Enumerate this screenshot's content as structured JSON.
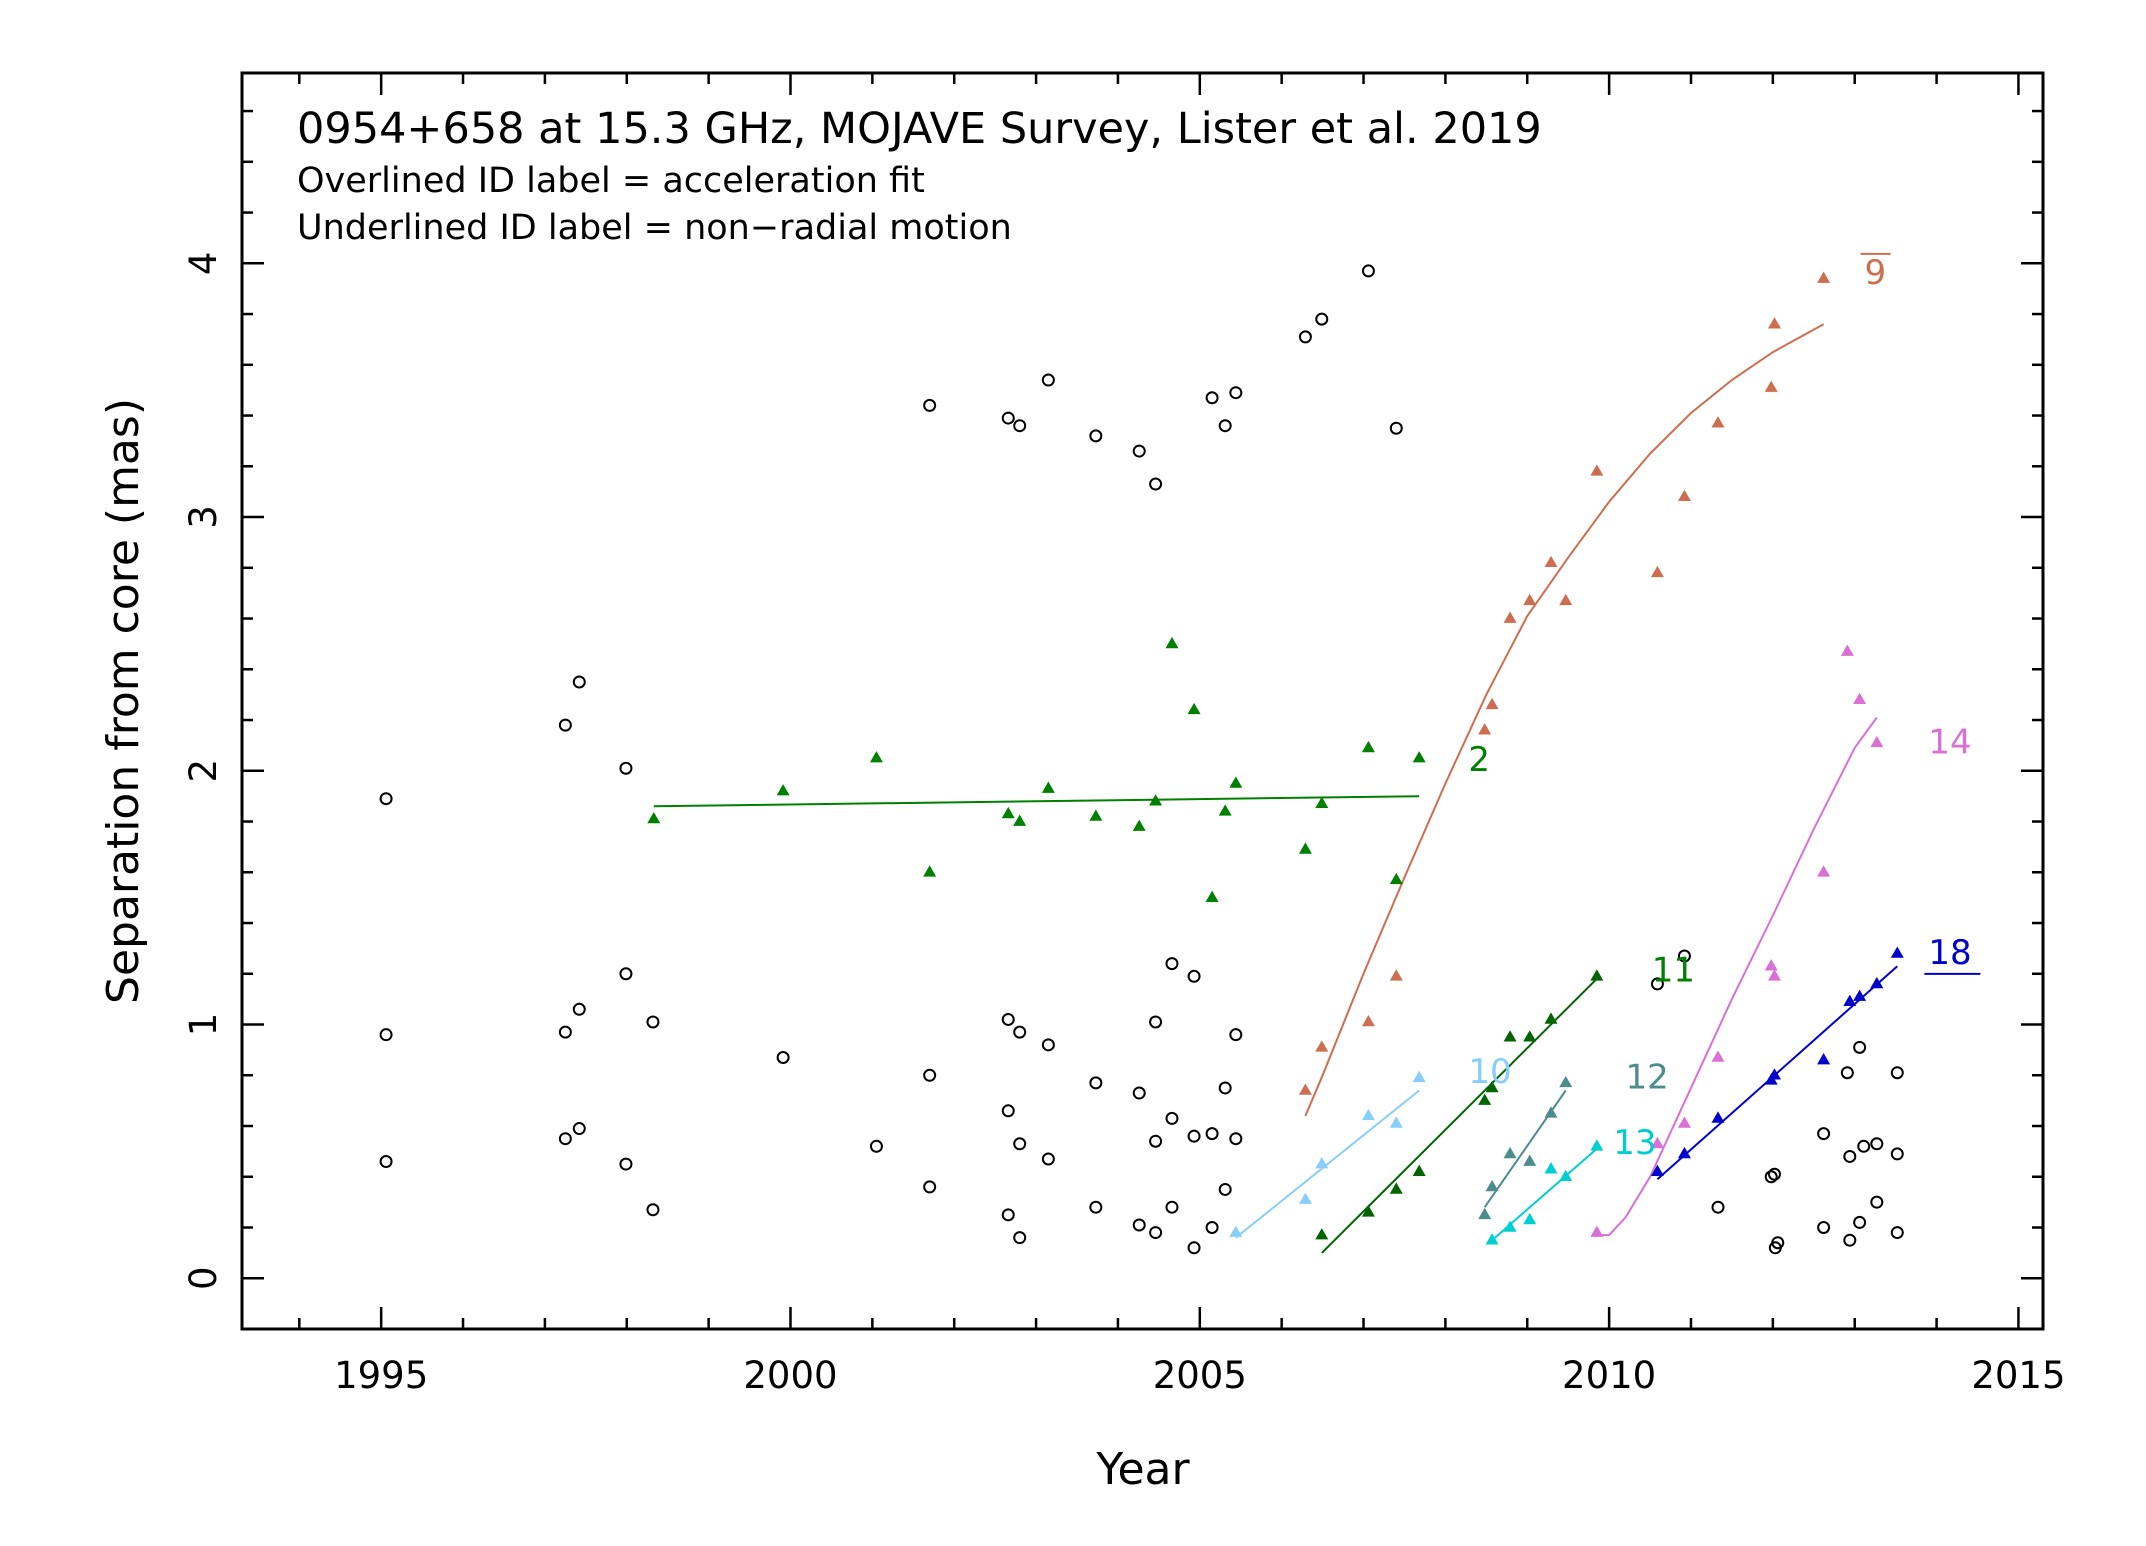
{
  "chart_data": {
    "type": "scatter",
    "title": "0954+658 at 15.3 GHz, MOJAVE Survey, Lister et al. 2019",
    "notes": [
      "Overlined ID label = acceleration fit",
      "Underlined ID label = non−radial motion"
    ],
    "xlabel": "Year",
    "ylabel": "Separation from core (mas)",
    "xlim": [
      1993.3,
      2015.3
    ],
    "ylim": [
      -0.2,
      4.75
    ],
    "xticks": [
      1995,
      2000,
      2005,
      2010,
      2015
    ],
    "yticks": [
      0,
      1,
      2,
      3,
      4
    ],
    "tick_labels": {
      "x": [
        "1995",
        "2000",
        "2005",
        "2010",
        "2015"
      ],
      "y": [
        "0",
        "1",
        "2",
        "3",
        "4"
      ]
    },
    "other_points": {
      "marker": "open-circle",
      "x": [
        1995.06,
        1995.06,
        1995.06,
        1997.25,
        1997.25,
        1997.25,
        1997.42,
        1997.42,
        1997.42,
        1997.99,
        1997.99,
        1997.99,
        1998.32,
        1998.32,
        1999.91,
        2001.05,
        2001.7,
        2001.7,
        2001.7,
        2002.66,
        2002.66,
        2002.66,
        2002.66,
        2002.8,
        2002.8,
        2002.8,
        2002.8,
        2003.15,
        2003.15,
        2003.15,
        2003.73,
        2003.73,
        2003.73,
        2004.26,
        2004.26,
        2004.26,
        2004.46,
        2004.46,
        2004.46,
        2004.46,
        2004.66,
        2004.66,
        2004.66,
        2004.93,
        2004.93,
        2004.93,
        2005.15,
        2005.15,
        2005.15,
        2005.31,
        2005.31,
        2005.31,
        2005.44,
        2005.44,
        2005.44,
        2006.29,
        2006.49,
        2007.06,
        2007.4,
        2010.59,
        2010.92,
        2011.33,
        2011.98,
        2012.02,
        2012.03,
        2012.06,
        2012.62,
        2012.62,
        2012.91,
        2012.94,
        2012.94,
        2013.06,
        2013.06,
        2013.11,
        2013.27,
        2013.27,
        2013.52,
        2013.52,
        2013.52
      ],
      "y": [
        1.89,
        0.96,
        0.46,
        2.18,
        0.97,
        0.55,
        2.35,
        1.06,
        0.59,
        2.01,
        1.2,
        0.45,
        1.01,
        0.27,
        0.87,
        0.52,
        3.44,
        0.8,
        0.36,
        3.39,
        1.02,
        0.66,
        0.25,
        3.36,
        0.97,
        0.53,
        0.16,
        3.54,
        0.92,
        0.47,
        3.32,
        0.77,
        0.28,
        3.26,
        0.73,
        0.21,
        3.13,
        1.01,
        0.54,
        0.18,
        1.24,
        0.63,
        0.28,
        1.19,
        0.56,
        0.12,
        3.47,
        0.57,
        0.2,
        3.36,
        0.75,
        0.35,
        3.49,
        0.96,
        0.55,
        3.71,
        3.78,
        3.97,
        3.35,
        1.16,
        1.27,
        0.28,
        0.4,
        0.41,
        0.12,
        0.14,
        0.57,
        0.2,
        0.81,
        0.15,
        0.48,
        0.91,
        0.22,
        0.52,
        0.53,
        0.3,
        0.81,
        0.49,
        0.18
      ]
    },
    "series": [
      {
        "name": "2",
        "color": "#008000",
        "x": [
          1998.33,
          1999.91,
          2001.05,
          2001.7,
          2002.66,
          2002.8,
          2003.15,
          2003.73,
          2004.26,
          2004.46,
          2004.66,
          2004.93,
          2005.15,
          2005.31,
          2005.44,
          2006.29,
          2006.49,
          2007.06,
          2007.4,
          2007.68
        ],
        "y": [
          1.81,
          1.92,
          2.05,
          1.6,
          1.83,
          1.8,
          1.93,
          1.82,
          1.78,
          1.88,
          2.5,
          2.24,
          1.5,
          1.84,
          1.95,
          1.69,
          1.87,
          2.09,
          1.57,
          2.05
        ],
        "fit_x": [
          1998.33,
          2007.68
        ],
        "fit_y": [
          1.86,
          1.9
        ]
      },
      {
        "name": "9",
        "color": "#CD6E50",
        "x": [
          2006.29,
          2006.49,
          2007.06,
          2007.4,
          2008.48,
          2008.57,
          2008.79,
          2009.03,
          2009.29,
          2009.47,
          2009.85,
          2010.59,
          2010.92,
          2011.33,
          2011.98,
          2012.02,
          2012.62
        ],
        "y": [
          0.74,
          0.91,
          1.01,
          1.19,
          2.16,
          2.26,
          2.6,
          2.67,
          2.82,
          2.67,
          3.18,
          2.78,
          3.08,
          3.37,
          3.51,
          3.76,
          3.94
        ],
        "fit_x": [
          2006.29,
          2006.5,
          2007.0,
          2007.5,
          2008.0,
          2008.5,
          2009.0,
          2009.5,
          2010.0,
          2010.5,
          2011.0,
          2011.5,
          2012.0,
          2012.62
        ],
        "fit_y": [
          0.64,
          0.8,
          1.2,
          1.58,
          1.95,
          2.3,
          2.61,
          2.84,
          3.06,
          3.25,
          3.41,
          3.54,
          3.65,
          3.76
        ]
      },
      {
        "name": "10",
        "color": "#87CEFA",
        "x": [
          2005.44,
          2006.29,
          2006.49,
          2007.06,
          2007.4,
          2007.68
        ],
        "y": [
          0.18,
          0.31,
          0.45,
          0.64,
          0.61,
          0.79
        ],
        "fit_x": [
          2005.44,
          2007.68
        ],
        "fit_y": [
          0.16,
          0.74
        ]
      },
      {
        "name": "11",
        "color": "#006400",
        "x": [
          2006.49,
          2007.06,
          2007.4,
          2007.68,
          2008.48,
          2008.57,
          2008.79,
          2009.03,
          2009.29,
          2009.85
        ],
        "y": [
          0.17,
          0.26,
          0.35,
          0.42,
          0.7,
          0.75,
          0.95,
          0.95,
          1.02,
          1.19
        ],
        "fit_x": [
          2006.49,
          2009.85
        ],
        "fit_y": [
          0.1,
          1.18
        ]
      },
      {
        "name": "12",
        "color": "#4C8C8C",
        "x": [
          2008.48,
          2008.57,
          2008.79,
          2009.03,
          2009.29,
          2009.47
        ],
        "y": [
          0.25,
          0.36,
          0.49,
          0.46,
          0.65,
          0.77
        ],
        "fit_x": [
          2008.48,
          2009.47
        ],
        "fit_y": [
          0.28,
          0.74
        ]
      },
      {
        "name": "13",
        "color": "#00CED1",
        "x": [
          2008.57,
          2008.79,
          2009.03,
          2009.29,
          2009.47,
          2009.85
        ],
        "y": [
          0.15,
          0.2,
          0.23,
          0.43,
          0.4,
          0.52
        ],
        "fit_x": [
          2008.57,
          2009.85
        ],
        "fit_y": [
          0.15,
          0.51
        ]
      },
      {
        "name": "14",
        "color": "#DA70D6",
        "x": [
          2009.85,
          2010.59,
          2010.92,
          2011.33,
          2011.98,
          2012.02,
          2012.62,
          2012.91,
          2013.06,
          2013.27
        ],
        "y": [
          0.18,
          0.53,
          0.61,
          0.87,
          1.23,
          1.19,
          1.6,
          2.47,
          2.28,
          2.11
        ],
        "fit_x": [
          2009.85,
          2010.0,
          2010.2,
          2010.5,
          2011.0,
          2011.5,
          2012.0,
          2012.5,
          2013.0,
          2013.27
        ],
        "fit_y": [
          0.17,
          0.17,
          0.24,
          0.4,
          0.75,
          1.1,
          1.43,
          1.77,
          2.09,
          2.21
        ]
      },
      {
        "name": "18",
        "color": "#0000CD",
        "x": [
          2010.59,
          2010.92,
          2011.33,
          2011.98,
          2012.02,
          2012.62,
          2012.94,
          2013.06,
          2013.27,
          2013.52
        ],
        "y": [
          0.42,
          0.49,
          0.63,
          0.78,
          0.8,
          0.86,
          1.09,
          1.11,
          1.16,
          1.28
        ],
        "fit_x": [
          2010.59,
          2013.52
        ],
        "fit_y": [
          0.39,
          1.23
        ]
      }
    ],
    "series_labels": [
      {
        "text": "2",
        "x": 2008.28,
        "y": 2.05,
        "color": "#008000",
        "style": "plain"
      },
      {
        "text": "9",
        "x": 2013.12,
        "y": 3.97,
        "color": "#CD6E50",
        "style": "overline"
      },
      {
        "text": "10",
        "x": 2008.28,
        "y": 0.82,
        "color": "#87CEFA",
        "style": "plain"
      },
      {
        "text": "11",
        "x": 2010.52,
        "y": 1.22,
        "color": "#008000",
        "style": "plain"
      },
      {
        "text": "12",
        "x": 2010.2,
        "y": 0.8,
        "color": "#4C8C8C",
        "style": "plain"
      },
      {
        "text": "13",
        "x": 2010.05,
        "y": 0.54,
        "color": "#00CED1",
        "style": "plain"
      },
      {
        "text": "14",
        "x": 2013.9,
        "y": 2.12,
        "color": "#DA70D6",
        "style": "plain"
      },
      {
        "text": "18",
        "x": 2013.9,
        "y": 1.29,
        "color": "#0000CD",
        "style": "underline"
      }
    ]
  }
}
